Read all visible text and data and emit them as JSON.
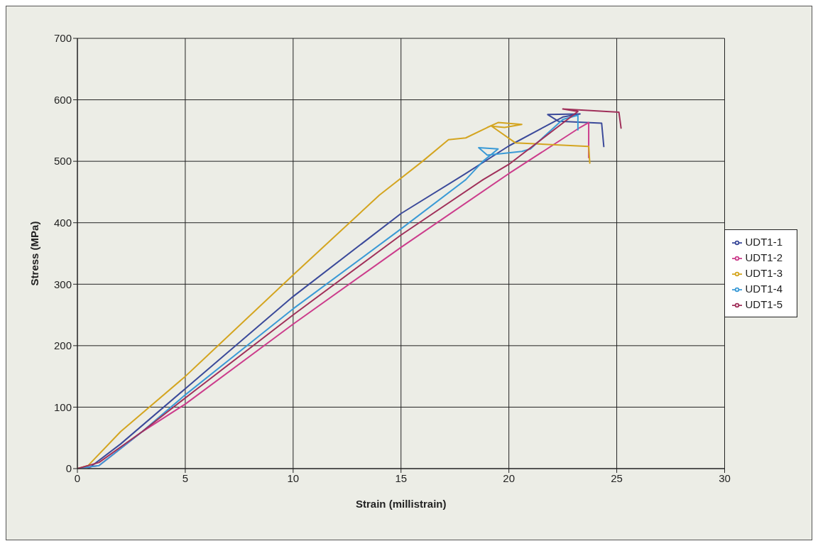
{
  "chart_data": {
    "type": "line",
    "xlabel": "Strain (millistrain)",
    "ylabel": "Stress (MPa)",
    "xlim": [
      0,
      30
    ],
    "xticks": [
      0,
      5,
      10,
      15,
      20,
      25,
      30
    ],
    "ylim": [
      0,
      700
    ],
    "yticks": [
      0,
      100,
      200,
      300,
      400,
      500,
      600,
      700
    ],
    "grid": true,
    "legend": "right",
    "marker": "none",
    "line_style": "solid",
    "series": [
      {
        "name": "UDT1-1",
        "color": "#3b4a9a",
        "x": [
          0.5,
          2,
          5,
          10,
          15,
          18,
          20,
          22.5,
          23.3,
          21.8,
          22.3,
          24.3,
          24.4
        ],
        "values": [
          0,
          40,
          130,
          280,
          415,
          480,
          525,
          572,
          577,
          576,
          565,
          562,
          524
        ]
      },
      {
        "name": "UDT1-2",
        "color": "#cc3d8c",
        "x": [
          0,
          1,
          3,
          5,
          10,
          15,
          20,
          23.3,
          23.7,
          23.7
        ],
        "values": [
          0,
          5,
          60,
          105,
          235,
          360,
          480,
          555,
          563,
          506
        ]
      },
      {
        "name": "UDT1-3",
        "color": "#d4a520",
        "x": [
          0,
          0.5,
          2,
          5,
          10,
          12,
          14,
          16,
          17.2,
          18,
          19,
          19.5,
          20.6,
          19.8,
          19.2,
          20.3,
          23.7,
          23.75
        ],
        "values": [
          0,
          5,
          60,
          150,
          315,
          380,
          445,
          500,
          535,
          538,
          555,
          563,
          560,
          555,
          557,
          530,
          524,
          497
        ]
      },
      {
        "name": "UDT1-4",
        "color": "#3a9ad6",
        "x": [
          0,
          1,
          3,
          5,
          10,
          15,
          18,
          18.8,
          19.5,
          18.6,
          19,
          20.6,
          21,
          22.5,
          23.2,
          23.2
        ],
        "values": [
          0,
          5,
          60,
          120,
          260,
          390,
          470,
          500,
          520,
          522,
          510,
          516,
          520,
          568,
          575,
          551
        ]
      },
      {
        "name": "UDT1-5",
        "color": "#a0305a",
        "x": [
          0,
          1,
          3,
          5,
          10,
          15,
          18.8,
          20,
          23.2,
          22.5,
          25.1,
          25.2
        ],
        "values": [
          0,
          10,
          60,
          115,
          250,
          380,
          470,
          495,
          581,
          585,
          580,
          554
        ]
      }
    ]
  }
}
